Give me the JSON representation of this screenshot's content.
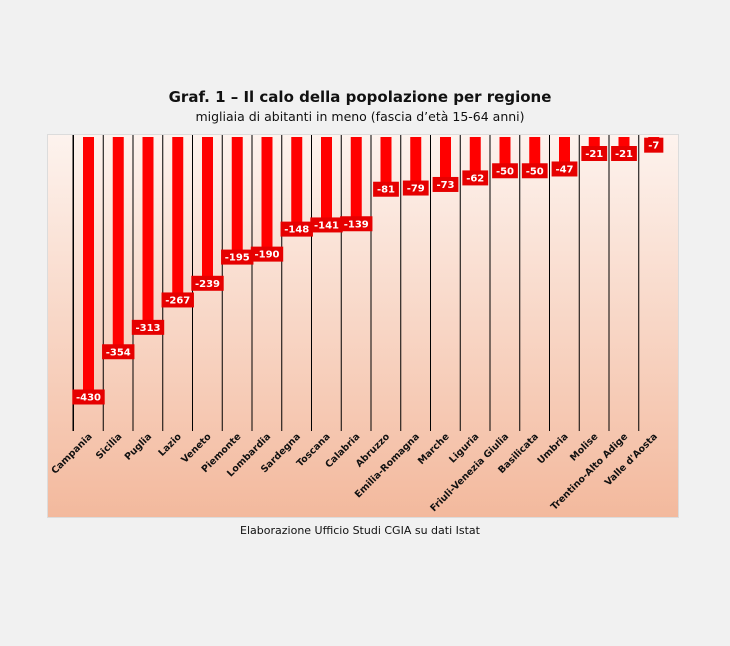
{
  "header": {
    "title": "Graf. 1 – Il calo della popolazione per regione",
    "subtitle": "migliaia di abitanti in meno (fascia d’età 15-64 anni)"
  },
  "footer": {
    "source": "Elaborazione Ufficio Studi CGIA su dati Istat"
  },
  "colors": {
    "bar": "#ff0000",
    "label_bg": "#e60000",
    "label_text": "#ffffff",
    "gridline": "#000000",
    "bg_top": "#fdf3ee",
    "bg_bottom": "#f3b99d"
  },
  "chart_data": {
    "type": "bar",
    "title": "Graf. 1 – Il calo della popolazione per regione",
    "subtitle": "migliaia di abitanti in meno (fascia d’età 15-64 anni)",
    "categories": [
      "Campania",
      "Sicilia",
      "Puglia",
      "Lazio",
      "Veneto",
      "Piemonte",
      "Lombardia",
      "Sardegna",
      "Toscana",
      "Calabria",
      "Abruzzo",
      "Emilia-Romagna",
      "Marche",
      "Liguria",
      "Friuli-Venezia Giulia",
      "Basilicata",
      "Umbria",
      "Molise",
      "Trentino-Alto Adige",
      "Valle d'Aosta"
    ],
    "values": [
      -430,
      -354,
      -313,
      -267,
      -239,
      -195,
      -190,
      -148,
      -141,
      -139,
      -81,
      -79,
      -73,
      -62,
      -50,
      -50,
      -47,
      -21,
      -21,
      -7
    ],
    "data_labels": [
      "-430",
      "-354",
      "-313",
      "-267",
      "-239",
      "-195",
      "-190",
      "-148",
      "-141",
      "-139",
      "-81",
      "-79",
      "-73",
      "-62",
      "-50",
      "-50",
      "-47",
      "-21",
      "-21",
      "-7"
    ],
    "xlabel": "",
    "ylabel": "",
    "ylim": [
      -430,
      0
    ],
    "grid": true,
    "legend": "none"
  }
}
